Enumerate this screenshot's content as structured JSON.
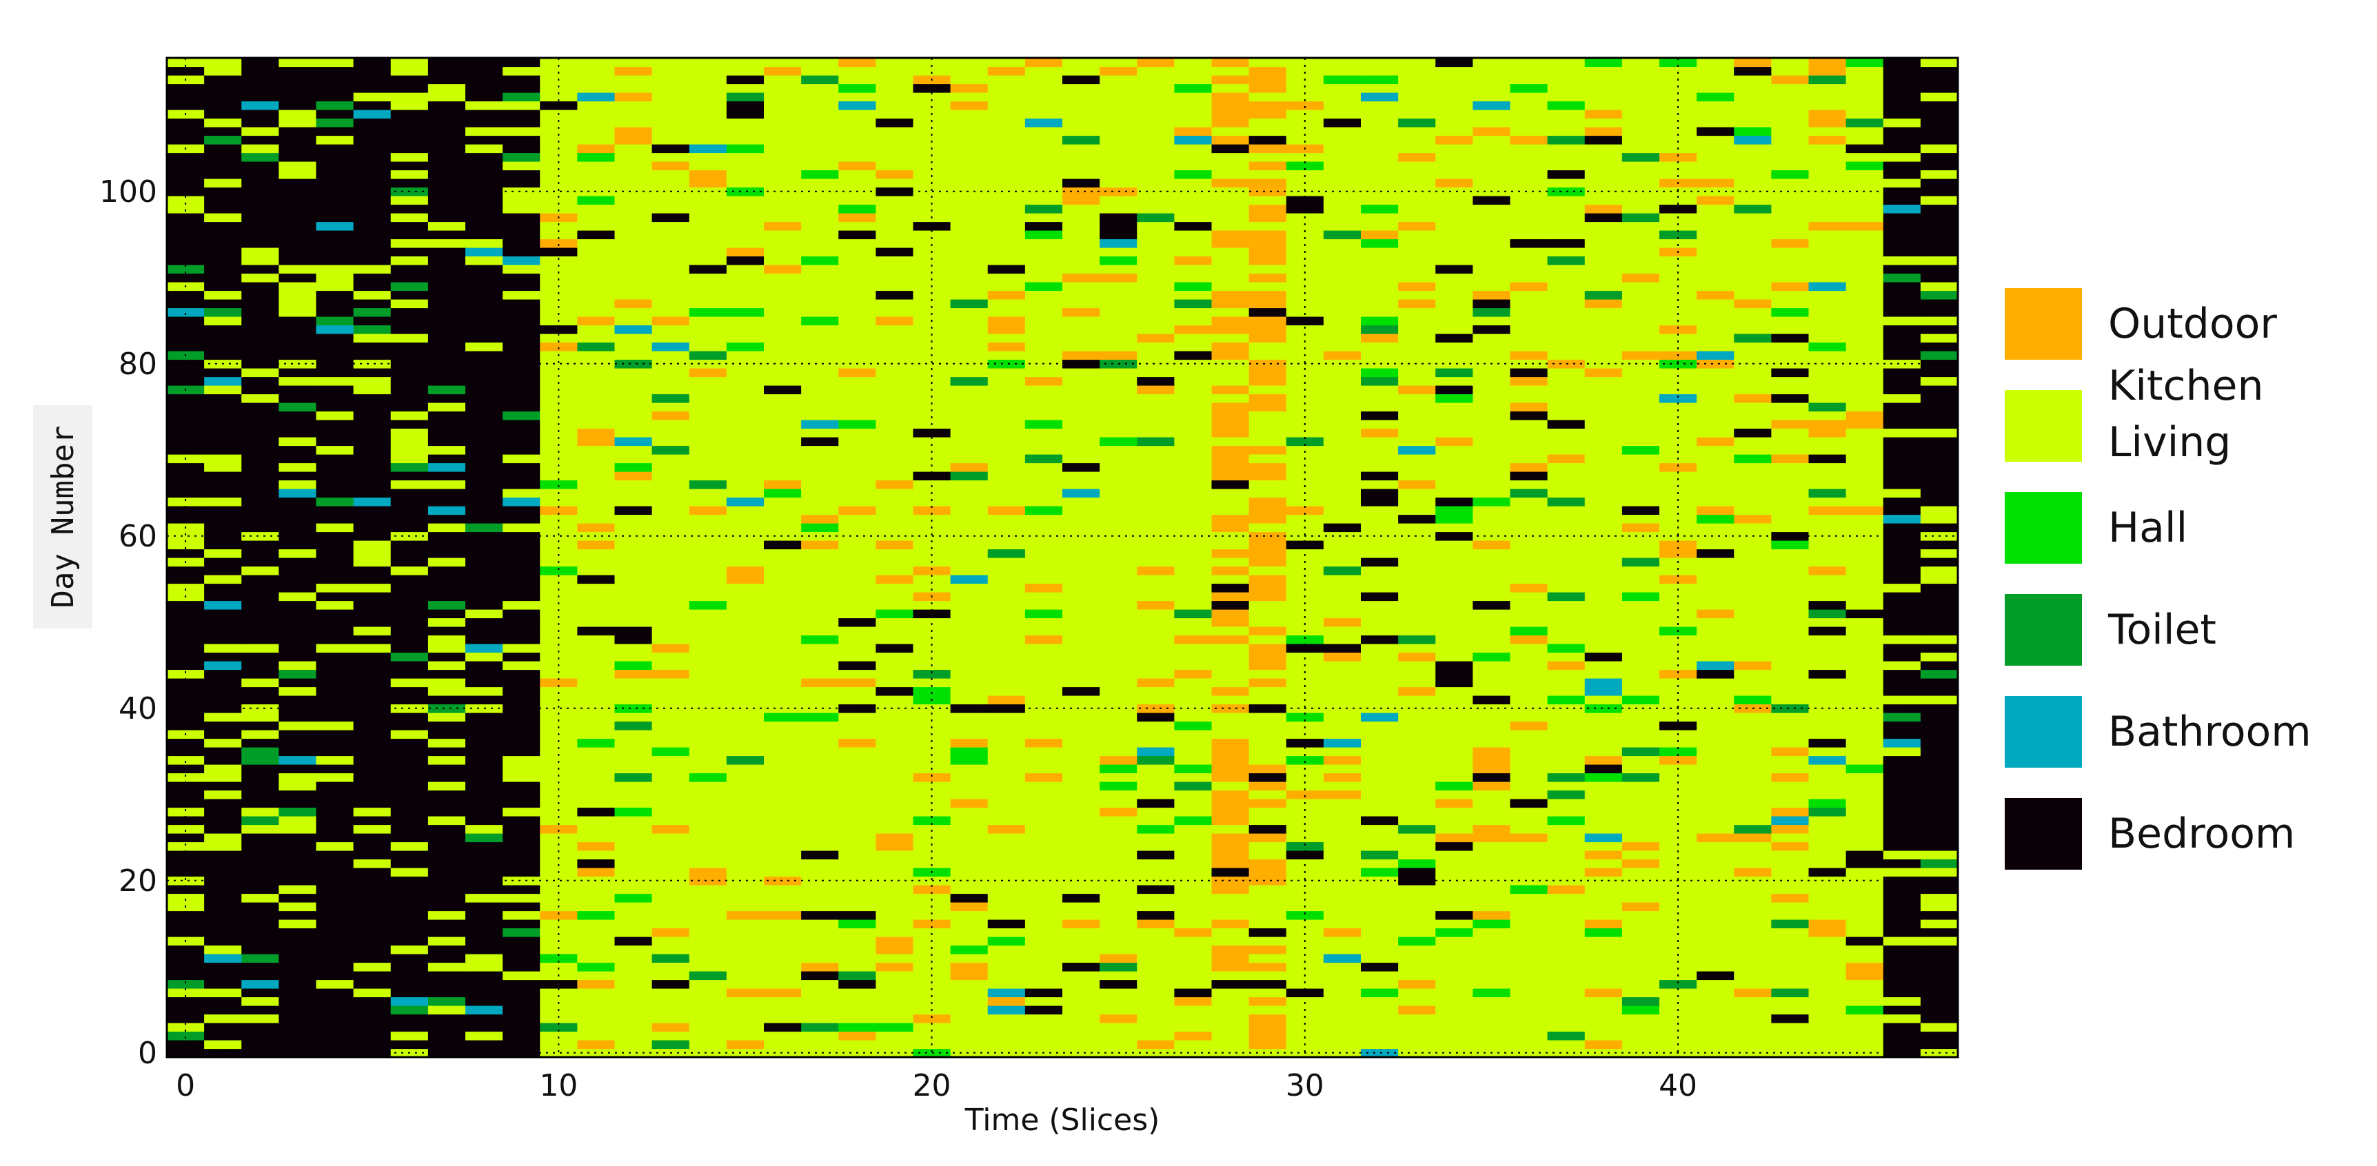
{
  "chart_data": {
    "type": "heatmap",
    "title": "",
    "xlabel": "Time (Slices)",
    "ylabel": "Day Number",
    "xlim": [
      -0.5,
      47.5
    ],
    "ylim": [
      -0.5,
      115.5
    ],
    "x_ticks": [
      0,
      10,
      20,
      30,
      40
    ],
    "y_ticks": [
      0,
      20,
      40,
      60,
      80,
      100
    ],
    "grid": true,
    "grid_style": "dotted",
    "legend_position": "right",
    "n_days": 116,
    "n_slices": 48,
    "legend": [
      {
        "name": "Outdoor",
        "color": "#ffae00"
      },
      {
        "name": "Kitchen\nLiving",
        "color": "#ccff00"
      },
      {
        "name": "Hall",
        "color": "#00e000"
      },
      {
        "name": "Toilet",
        "color": "#009e28"
      },
      {
        "name": "Bathroom",
        "color": "#00a8c0"
      },
      {
        "name": "Bedroom",
        "color": "#0a0008"
      }
    ],
    "typical_room_by_slice": [
      "Bedroom",
      "Bedroom",
      "Bedroom",
      "Bedroom",
      "Bedroom",
      "Bedroom",
      "Bedroom",
      "Bedroom",
      "Bedroom",
      "Bedroom",
      "Kitchen Living",
      "Kitchen Living",
      "Kitchen Living",
      "Kitchen Living",
      "Kitchen Living",
      "Kitchen Living",
      "Kitchen Living",
      "Kitchen Living",
      "Kitchen Living",
      "Kitchen Living",
      "Kitchen Living",
      "Kitchen Living",
      "Kitchen Living",
      "Kitchen Living",
      "Kitchen Living",
      "Kitchen Living",
      "Kitchen Living",
      "Kitchen Living",
      "Outdoor",
      "Outdoor",
      "Kitchen Living",
      "Kitchen Living",
      "Kitchen Living",
      "Kitchen Living",
      "Kitchen Living",
      "Kitchen Living",
      "Kitchen Living",
      "Kitchen Living",
      "Kitchen Living",
      "Kitchen Living",
      "Kitchen Living",
      "Kitchen Living",
      "Kitchen Living",
      "Kitchen Living",
      "Kitchen Living",
      "Kitchen Living",
      "Bedroom",
      "Bedroom"
    ]
  }
}
